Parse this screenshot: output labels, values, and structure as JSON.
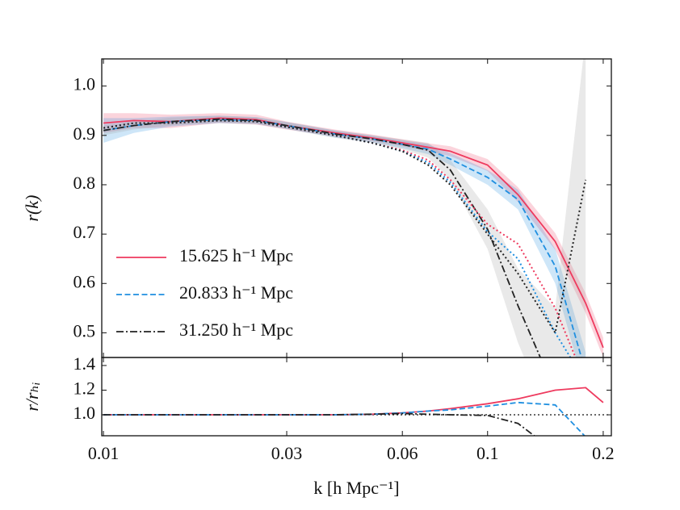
{
  "chart_data": [
    {
      "type": "line",
      "ylabel": "r(k)",
      "legend": "lower left",
      "xlim": [
        0.0099,
        0.21
      ],
      "xscale": "log",
      "ylim": [
        0.45,
        1.055
      ],
      "yticks": [
        0.5,
        0.6,
        0.7,
        0.8,
        0.9,
        {
          "value": 1,
          "label": "1.0"
        }
      ],
      "x": [
        0.01,
        0.012,
        0.015,
        0.02,
        0.025,
        0.03,
        0.04,
        0.05,
        0.06,
        0.07,
        0.08,
        0.1,
        0.12,
        0.15,
        0.18,
        0.2
      ],
      "series": [
        {
          "name": "15.625 h⁻¹ Mpc",
          "color": "#ee3a5e",
          "dash": "solid",
          "band_color": "#ee3a5e",
          "values": [
            0.925,
            0.93,
            0.928,
            0.935,
            0.932,
            0.92,
            0.905,
            0.895,
            0.885,
            0.876,
            0.868,
            0.84,
            0.78,
            0.685,
            0.56,
            0.47
          ],
          "lower": [
            0.905,
            0.915,
            0.915,
            0.925,
            0.922,
            0.912,
            0.898,
            0.888,
            0.878,
            0.868,
            0.858,
            0.828,
            0.765,
            0.668,
            0.54,
            0.45
          ],
          "upper": [
            0.945,
            0.945,
            0.942,
            0.945,
            0.942,
            0.928,
            0.912,
            0.902,
            0.892,
            0.884,
            0.878,
            0.852,
            0.795,
            0.702,
            0.58,
            0.49
          ]
        },
        {
          "name": "20.833 h⁻¹ Mpc",
          "color": "#1f8fe0",
          "dash": "dashed",
          "band_color": "#1f8fe0",
          "values": [
            0.91,
            0.92,
            0.928,
            0.932,
            0.93,
            0.92,
            0.903,
            0.893,
            0.882,
            0.872,
            0.852,
            0.815,
            0.77,
            0.635,
            0.42,
            null
          ],
          "lower": [
            0.885,
            0.905,
            0.918,
            0.925,
            0.923,
            0.913,
            0.896,
            0.886,
            0.874,
            0.862,
            0.84,
            0.8,
            0.75,
            0.6,
            0.38,
            null
          ],
          "upper": [
            0.935,
            0.935,
            0.938,
            0.94,
            0.937,
            0.927,
            0.91,
            0.9,
            0.89,
            0.882,
            0.864,
            0.83,
            0.79,
            0.67,
            0.46,
            null
          ]
        },
        {
          "name": "31.250 h⁻¹ Mpc",
          "color": "#222222",
          "dash": "dashdot",
          "band_color": "#9a9a9a",
          "values": [
            0.91,
            0.92,
            0.928,
            0.933,
            0.93,
            0.92,
            0.903,
            0.893,
            0.882,
            0.87,
            0.83,
            0.71,
            0.555,
            0.38,
            null,
            null
          ],
          "lower": [
            0.9,
            0.912,
            0.92,
            0.926,
            0.923,
            0.913,
            0.895,
            0.885,
            0.872,
            0.855,
            0.81,
            0.67,
            0.48,
            0.3,
            0.3,
            null
          ],
          "upper": [
            0.92,
            0.928,
            0.936,
            0.94,
            0.937,
            0.927,
            0.91,
            0.9,
            0.892,
            0.885,
            0.85,
            0.75,
            0.63,
            0.55,
            1.1,
            null
          ]
        },
        {
          "color": "#ee3a5e",
          "dash": "dotted",
          "values": [
            0.915,
            0.925,
            0.925,
            0.93,
            0.928,
            0.917,
            0.9,
            0.885,
            0.87,
            0.85,
            0.81,
            0.72,
            0.68,
            0.55,
            0.4,
            null
          ]
        },
        {
          "color": "#1f8fe0",
          "dash": "dotted",
          "values": [
            0.915,
            0.925,
            0.925,
            0.93,
            0.928,
            0.917,
            0.9,
            0.885,
            0.868,
            0.845,
            0.805,
            0.705,
            0.65,
            0.5,
            0.4,
            null
          ]
        },
        {
          "color": "#222222",
          "dash": "dotted",
          "values": [
            0.915,
            0.925,
            0.925,
            0.93,
            0.928,
            0.917,
            0.9,
            0.885,
            0.868,
            0.84,
            0.8,
            0.7,
            0.62,
            0.5,
            0.81,
            null
          ]
        }
      ]
    },
    {
      "type": "line",
      "ylabel": "r/rₕᵢ",
      "xlabel": "k [h Mpc⁻¹]",
      "xlim": [
        0.0099,
        0.21
      ],
      "xscale": "log",
      "xticks": [
        0.01,
        0.03,
        0.06,
        0.1,
        0.2
      ],
      "ylim": [
        0.83,
        1.465
      ],
      "yticks": [
        {
          "value": 1,
          "label": "1.0"
        },
        1.2,
        1.4
      ],
      "hline": 1,
      "x": [
        0.01,
        0.012,
        0.015,
        0.02,
        0.025,
        0.03,
        0.04,
        0.05,
        0.06,
        0.07,
        0.08,
        0.1,
        0.12,
        0.15,
        0.18,
        0.2
      ],
      "series": [
        {
          "color": "#ee3a5e",
          "dash": "solid",
          "values": [
            1.0,
            1.0,
            1.0,
            1.0,
            1.0,
            1.0,
            1.0,
            1.005,
            1.015,
            1.03,
            1.05,
            1.09,
            1.13,
            1.2,
            1.22,
            1.1
          ]
        },
        {
          "color": "#1f8fe0",
          "dash": "dashed",
          "values": [
            1.0,
            1.0,
            1.0,
            1.0,
            1.0,
            1.0,
            1.0,
            1.005,
            1.015,
            1.03,
            1.04,
            1.07,
            1.1,
            1.08,
            0.82,
            null
          ]
        },
        {
          "color": "#222222",
          "dash": "dashdot",
          "values": [
            1.0,
            1.0,
            1.0,
            1.0,
            1.0,
            1.0,
            1.0,
            1.005,
            1.01,
            1.005,
            1.0,
            0.995,
            0.93,
            0.7,
            null,
            null
          ]
        }
      ]
    }
  ]
}
